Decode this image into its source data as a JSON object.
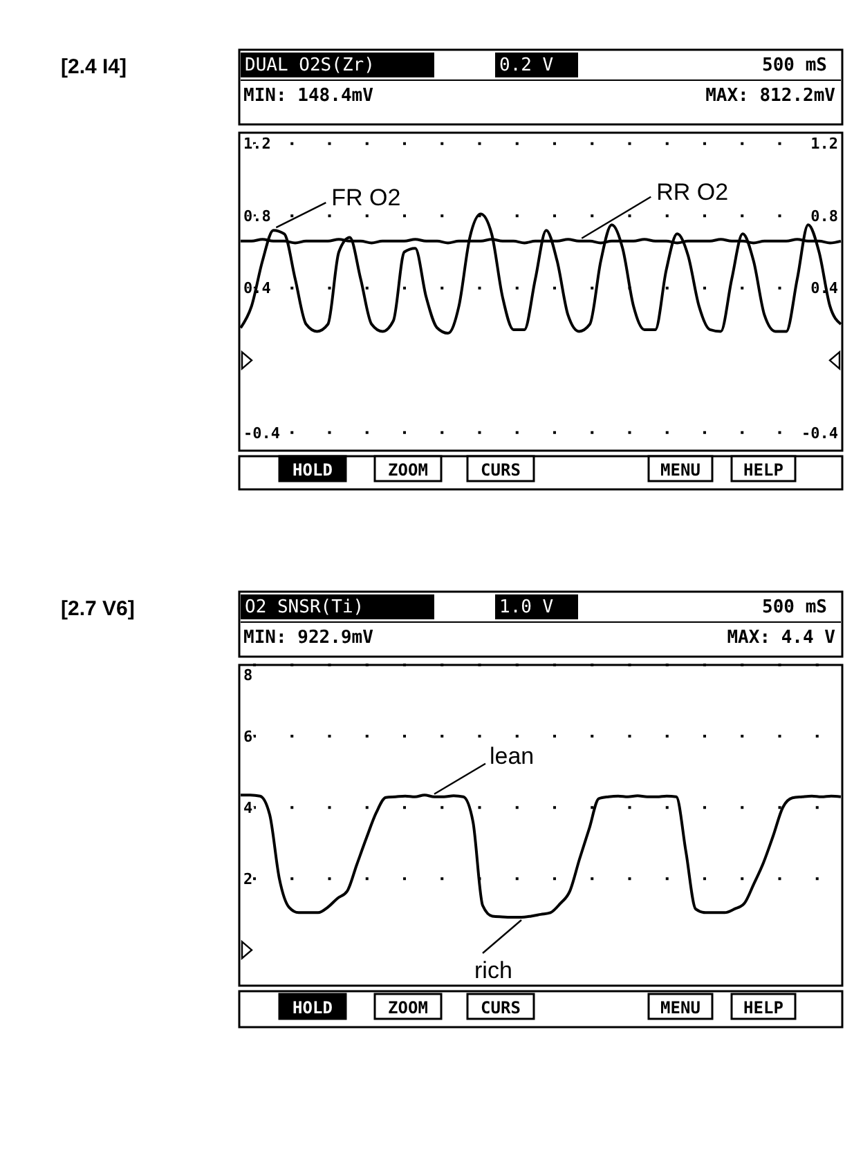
{
  "chart_data": [
    {
      "type": "line",
      "title": "[2.4 I4]",
      "subtitle": "DUAL O2S(Zr)",
      "tick_labels": "y",
      "grid": true,
      "categories": [
        null,
        null,
        null,
        null,
        null,
        null,
        null,
        null,
        null,
        null,
        null,
        null,
        null,
        null,
        null,
        null,
        null,
        null,
        null,
        null,
        null,
        null,
        null,
        null,
        null,
        null,
        null,
        null,
        null,
        null,
        null,
        null,
        null,
        null,
        null,
        null,
        null,
        null,
        null,
        null,
        null,
        null,
        null,
        null,
        null,
        null,
        null,
        null,
        null,
        null,
        null,
        null,
        null,
        null,
        null,
        null
      ],
      "series": [
        {
          "name": "FR O2",
          "color": "#000000",
          "values": [
            0.18,
            0.3,
            0.55,
            0.72,
            0.7,
            0.45,
            0.2,
            0.16,
            0.2,
            0.6,
            0.68,
            0.45,
            0.2,
            0.16,
            0.22,
            0.6,
            0.62,
            0.35,
            0.18,
            0.15,
            0.3,
            0.68,
            0.81,
            0.7,
            0.35,
            0.17,
            0.17,
            0.45,
            0.72,
            0.55,
            0.25,
            0.16,
            0.2,
            0.55,
            0.75,
            0.62,
            0.3,
            0.17,
            0.17,
            0.5,
            0.7,
            0.58,
            0.3,
            0.17,
            0.16,
            0.45,
            0.7,
            0.55,
            0.25,
            0.16,
            0.16,
            0.45,
            0.75,
            0.6,
            0.3,
            0.2
          ]
        },
        {
          "name": "RR O2",
          "color": "#000000",
          "values": [
            0.66,
            0.66,
            0.67,
            0.66,
            0.66,
            0.65,
            0.66,
            0.66,
            0.66,
            0.67,
            0.66,
            0.66,
            0.65,
            0.66,
            0.66,
            0.66,
            0.67,
            0.66,
            0.66,
            0.65,
            0.66,
            0.66,
            0.66,
            0.67,
            0.66,
            0.66,
            0.65,
            0.66,
            0.66,
            0.66,
            0.67,
            0.66,
            0.66,
            0.65,
            0.66,
            0.66,
            0.66,
            0.67,
            0.66,
            0.66,
            0.65,
            0.66,
            0.66,
            0.66,
            0.67,
            0.66,
            0.66,
            0.65,
            0.66,
            0.66,
            0.66,
            0.67,
            0.66,
            0.66,
            0.65,
            0.66
          ]
        }
      ],
      "ylim": [
        -0.5,
        1.26
      ],
      "yticks": [
        -0.4,
        0.4,
        0.8,
        1.2
      ],
      "y2lim": [
        -0.5,
        1.26
      ],
      "y2ticks": [
        -0.4,
        0.4,
        0.8,
        1.2
      ],
      "annotations": [
        "0.2 V",
        "500 mS",
        "MIN: 148.4mV",
        "MAX: 812.2mV",
        "HOLD",
        "ZOOM",
        "CURS",
        "MENU",
        "HELP"
      ]
    },
    {
      "type": "line",
      "title": "[2.7 V6]",
      "subtitle": "O2 SNSR(Ti)",
      "tick_labels": "y",
      "grid": true,
      "categories": [
        null,
        null,
        null,
        null,
        null,
        null,
        null,
        null,
        null,
        null,
        null,
        null,
        null,
        null,
        null,
        null,
        null,
        null,
        null,
        null,
        null,
        null,
        null,
        null,
        null,
        null,
        null,
        null,
        null,
        null,
        null,
        null,
        null,
        null,
        null,
        null,
        null,
        null,
        null,
        null,
        null,
        null,
        null,
        null,
        null,
        null,
        null,
        null,
        null,
        null,
        null,
        null,
        null,
        null,
        null,
        null,
        null,
        null,
        null,
        null,
        null,
        null,
        null
      ],
      "series": [
        {
          "color": "#000000",
          "values": [
            4.35,
            4.35,
            4.32,
            3.8,
            2.0,
            1.2,
            1.05,
            1.05,
            1.05,
            1.2,
            1.45,
            1.65,
            2.4,
            3.15,
            3.85,
            4.28,
            4.3,
            4.32,
            4.3,
            4.35,
            4.3,
            4.3,
            4.33,
            4.3,
            3.6,
            1.25,
            0.95,
            0.93,
            0.92,
            0.92,
            0.95,
            1.0,
            1.05,
            1.3,
            1.65,
            2.55,
            3.4,
            4.25,
            4.3,
            4.32,
            4.3,
            4.33,
            4.3,
            4.3,
            4.32,
            4.3,
            2.75,
            1.15,
            1.05,
            1.05,
            1.05,
            1.15,
            1.3,
            1.85,
            2.45,
            3.2,
            4.0,
            4.27,
            4.3,
            4.32,
            4.3,
            4.32,
            4.3
          ]
        }
      ],
      "ylim": [
        -1,
        8
      ],
      "yticks": [
        2,
        4,
        6,
        8
      ],
      "annotations": [
        "1.0 V",
        "500 mS",
        "MIN: 922.9mV",
        "MAX: 4.4 V",
        "HOLD",
        "ZOOM",
        "CURS",
        "MENU",
        "HELP",
        "lean",
        "rich"
      ]
    }
  ]
}
